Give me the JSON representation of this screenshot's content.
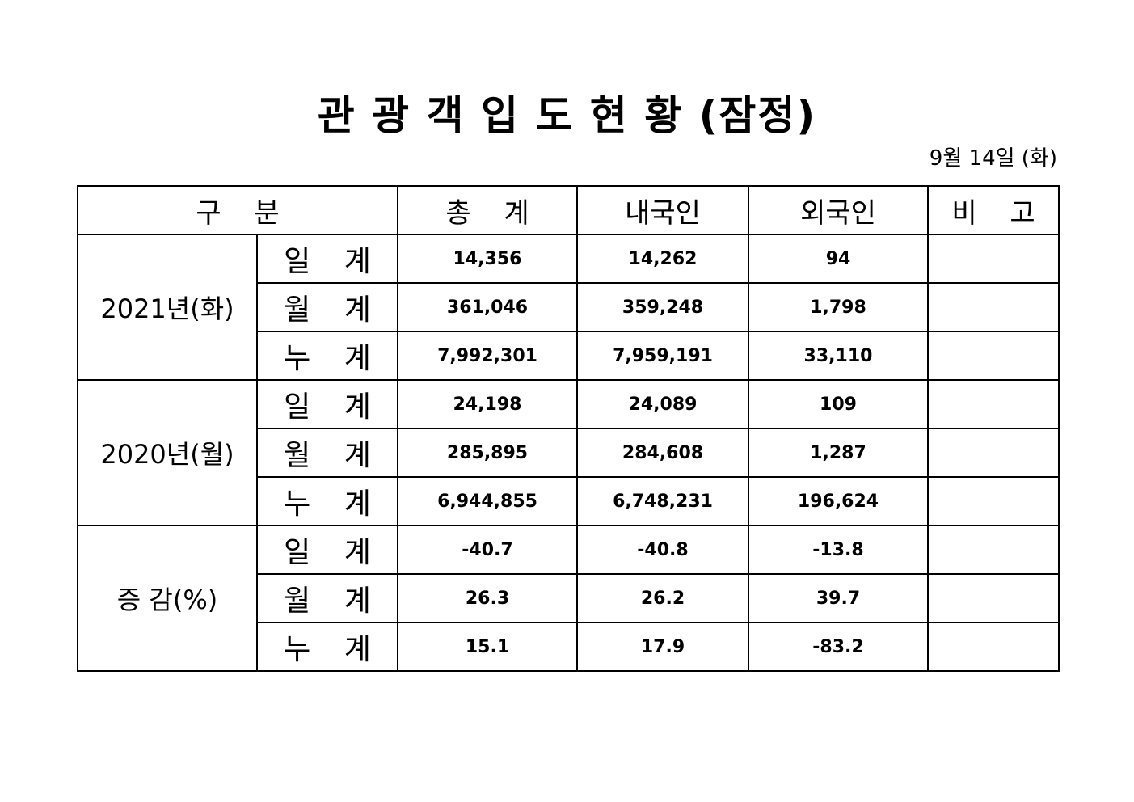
{
  "title": "관 광 객 입 도 현 황 (잠정)",
  "date": "9월 14일 (화)",
  "header": {
    "category": "구 분",
    "total": "총 계",
    "domestic": "내국인",
    "foreign": "외국인",
    "remarks": "비 고"
  },
  "groups": [
    {
      "label": "2021년(화)",
      "rows": [
        {
          "label": "일 계",
          "total": "14,356",
          "domestic": "14,262",
          "foreign": "94",
          "remarks": ""
        },
        {
          "label": "월 계",
          "total": "361,046",
          "domestic": "359,248",
          "foreign": "1,798",
          "remarks": ""
        },
        {
          "label": "누 계",
          "total": "7,992,301",
          "domestic": "7,959,191",
          "foreign": "33,110",
          "remarks": ""
        }
      ]
    },
    {
      "label": "2020년(월)",
      "rows": [
        {
          "label": "일 계",
          "total": "24,198",
          "domestic": "24,089",
          "foreign": "109",
          "remarks": ""
        },
        {
          "label": "월 계",
          "total": "285,895",
          "domestic": "284,608",
          "foreign": "1,287",
          "remarks": ""
        },
        {
          "label": "누 계",
          "total": "6,944,855",
          "domestic": "6,748,231",
          "foreign": "196,624",
          "remarks": ""
        }
      ]
    },
    {
      "label": "증 감(%)",
      "rows": [
        {
          "label": "일 계",
          "total": "-40.7",
          "domestic": "-40.8",
          "foreign": "-13.8",
          "remarks": ""
        },
        {
          "label": "월 계",
          "total": "26.3",
          "domestic": "26.2",
          "foreign": "39.7",
          "remarks": ""
        },
        {
          "label": "누 계",
          "total": "15.1",
          "domestic": "17.9",
          "foreign": "-83.2",
          "remarks": ""
        }
      ]
    }
  ]
}
